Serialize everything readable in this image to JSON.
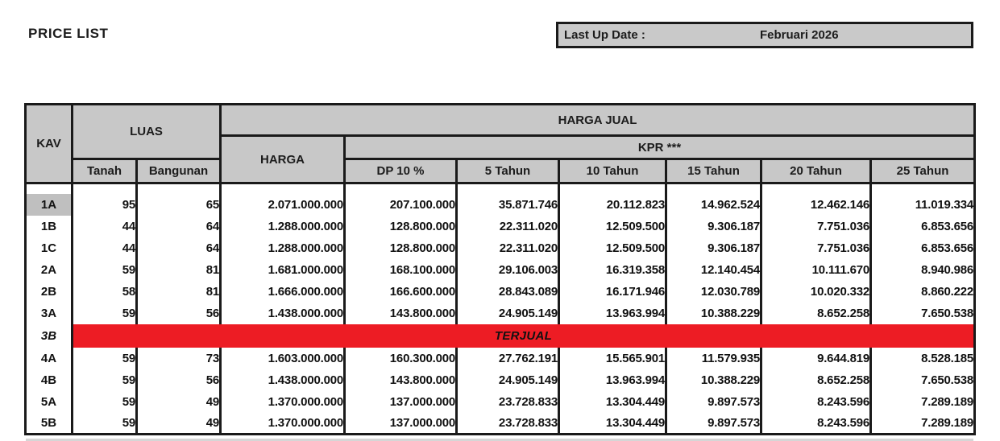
{
  "page": {
    "title": "PRICE LIST"
  },
  "last_update": {
    "label": "Last Up Date :",
    "value": "Februari 2026"
  },
  "colors": {
    "border": "#1a1a1a",
    "header_bg": "#c8c8c8",
    "highlight_bg": "#bfbfbf",
    "sold_bg": "#ed1c24"
  },
  "table": {
    "headers": {
      "kav": "KAV",
      "luas": "LUAS",
      "tanah": "Tanah",
      "bangunan": "Bangunan",
      "harga_jual": "HARGA JUAL",
      "harga": "HARGA",
      "kpr": "KPR ***",
      "dp": "DP 10 %",
      "t5": "5 Tahun",
      "t10": "10 Tahun",
      "t15": "15 Tahun",
      "t20": "20 Tahun",
      "t25": "25 Tahun"
    },
    "sold_label": "TERJUAL",
    "rows": [
      {
        "kav": "1A",
        "highlight": true,
        "tanah": "95",
        "bangunan": "65",
        "harga": "2.071.000.000",
        "dp": "207.100.000",
        "t5": "35.871.746",
        "t10": "20.112.823",
        "t15": "14.962.524",
        "t20": "12.462.146",
        "t25": "11.019.334"
      },
      {
        "kav": "1B",
        "tanah": "44",
        "bangunan": "64",
        "harga": "1.288.000.000",
        "dp": "128.800.000",
        "t5": "22.311.020",
        "t10": "12.509.500",
        "t15": "9.306.187",
        "t20": "7.751.036",
        "t25": "6.853.656"
      },
      {
        "kav": "1C",
        "tanah": "44",
        "bangunan": "64",
        "harga": "1.288.000.000",
        "dp": "128.800.000",
        "t5": "22.311.020",
        "t10": "12.509.500",
        "t15": "9.306.187",
        "t20": "7.751.036",
        "t25": "6.853.656"
      },
      {
        "kav": "2A",
        "tanah": "59",
        "bangunan": "81",
        "harga": "1.681.000.000",
        "dp": "168.100.000",
        "t5": "29.106.003",
        "t10": "16.319.358",
        "t15": "12.140.454",
        "t20": "10.111.670",
        "t25": "8.940.986"
      },
      {
        "kav": "2B",
        "tanah": "58",
        "bangunan": "81",
        "harga": "1.666.000.000",
        "dp": "166.600.000",
        "t5": "28.843.089",
        "t10": "16.171.946",
        "t15": "12.030.789",
        "t20": "10.020.332",
        "t25": "8.860.222"
      },
      {
        "kav": "3A",
        "tanah": "59",
        "bangunan": "56",
        "harga": "1.438.000.000",
        "dp": "143.800.000",
        "t5": "24.905.149",
        "t10": "13.963.994",
        "t15": "10.388.229",
        "t20": "8.652.258",
        "t25": "7.650.538"
      },
      {
        "kav": "3B",
        "sold": true
      },
      {
        "kav": "4A",
        "tanah": "59",
        "bangunan": "73",
        "harga": "1.603.000.000",
        "dp": "160.300.000",
        "t5": "27.762.191",
        "t10": "15.565.901",
        "t15": "11.579.935",
        "t20": "9.644.819",
        "t25": "8.528.185"
      },
      {
        "kav": "4B",
        "tanah": "59",
        "bangunan": "56",
        "harga": "1.438.000.000",
        "dp": "143.800.000",
        "t5": "24.905.149",
        "t10": "13.963.994",
        "t15": "10.388.229",
        "t20": "8.652.258",
        "t25": "7.650.538"
      },
      {
        "kav": "5A",
        "tanah": "59",
        "bangunan": "49",
        "harga": "1.370.000.000",
        "dp": "137.000.000",
        "t5": "23.728.833",
        "t10": "13.304.449",
        "t15": "9.897.573",
        "t20": "8.243.596",
        "t25": "7.289.189"
      },
      {
        "kav": "5B",
        "tanah": "59",
        "bangunan": "49",
        "harga": "1.370.000.000",
        "dp": "137.000.000",
        "t5": "23.728.833",
        "t10": "13.304.449",
        "t15": "9.897.573",
        "t20": "8.243.596",
        "t25": "7.289.189"
      }
    ]
  }
}
